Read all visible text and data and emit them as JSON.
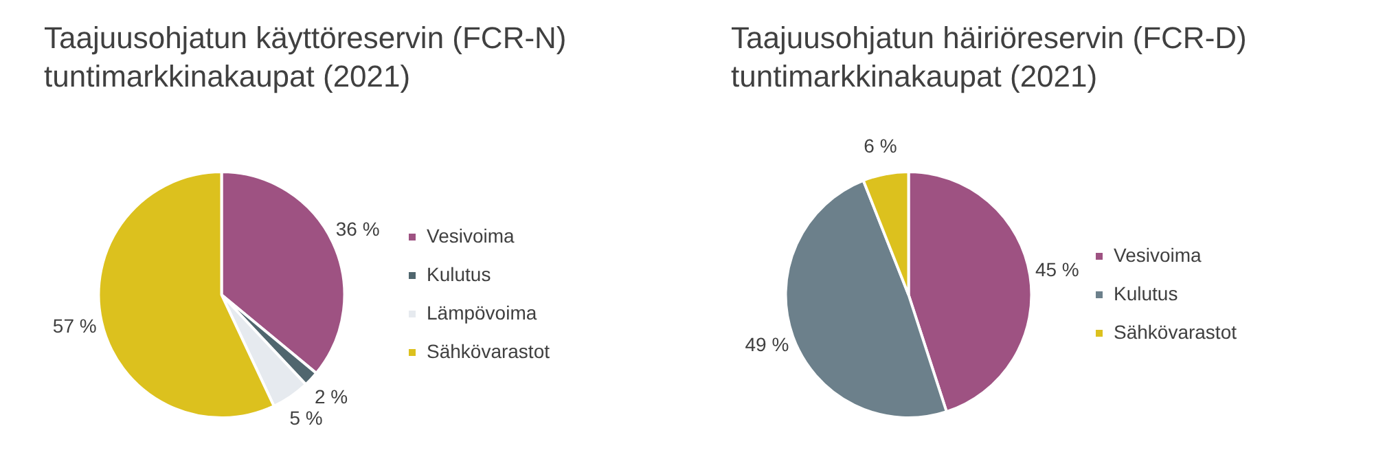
{
  "chart_data": [
    {
      "type": "pie",
      "title": "Taajuusohjatun käyttöreservin (FCR-N) tuntimarkkinakaupat (2021)",
      "categories": [
        "Vesivoima",
        "Kulutus",
        "Lämpövoima",
        "Sähkövarastot"
      ],
      "values": [
        36,
        2,
        5,
        57
      ],
      "colors": [
        "#9e5282",
        "#50666e",
        "#e6eaef",
        "#dcc11e"
      ],
      "value_labels": [
        "36 %",
        "2 %",
        "5 %",
        "57 %"
      ],
      "legend": "right"
    },
    {
      "type": "pie",
      "title": "Taajuusohjatun häiriöreservin (FCR-D) tuntimarkkinakaupat (2021)",
      "categories": [
        "Vesivoima",
        "Kulutus",
        "Sähkövarastot"
      ],
      "values": [
        45,
        49,
        6
      ],
      "colors": [
        "#9e5282",
        "#6c808b",
        "#dcc11e"
      ],
      "value_labels": [
        "45 %",
        "49 %",
        "6 %"
      ],
      "legend": "right"
    }
  ]
}
